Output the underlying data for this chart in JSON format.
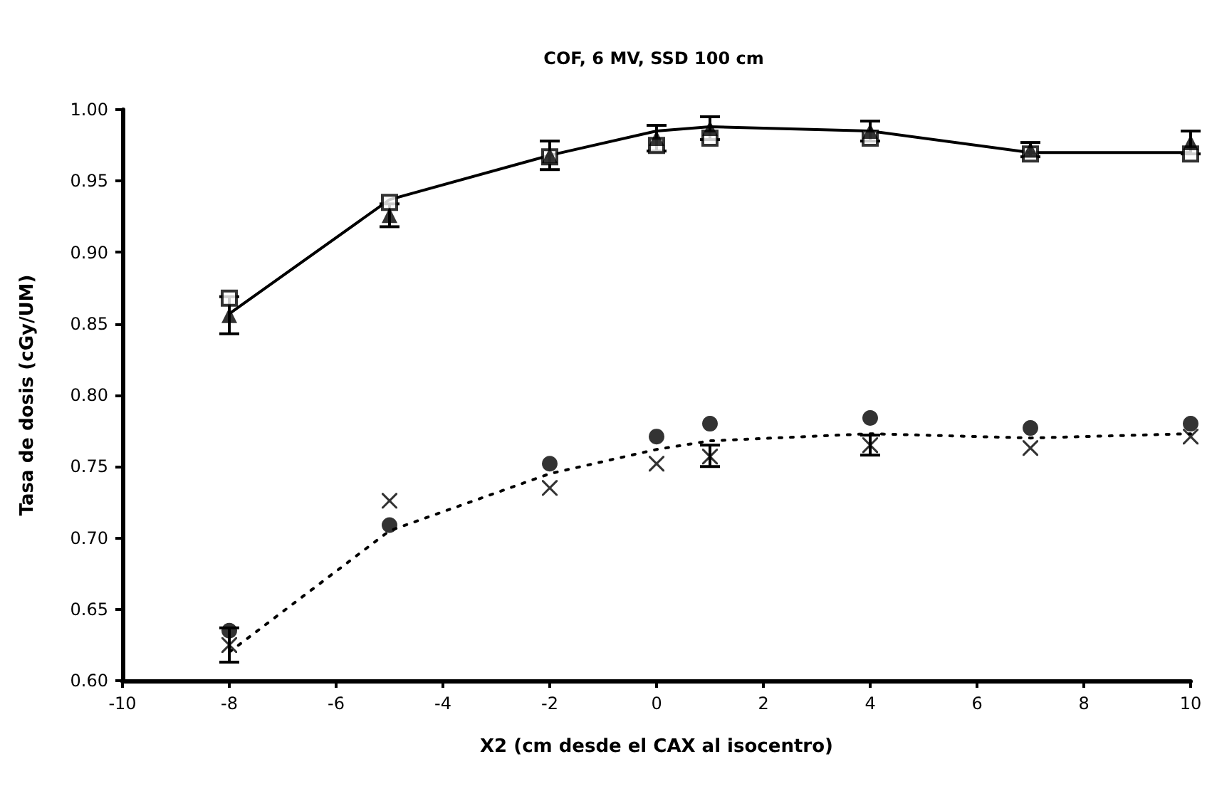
{
  "chart_data": {
    "type": "scatter",
    "title": "COF, 6 MV, SSD 100 cm",
    "xlabel": "X2 (cm desde el CAX al isocentro)",
    "ylabel": "Tasa de dosis (cGy/UM)",
    "x": [
      -8,
      -5,
      -2,
      0,
      1,
      4,
      7,
      10
    ],
    "series": [
      {
        "type": "line",
        "color": "#000000",
        "marker": "none",
        "line_style": "solid",
        "values": [
          0.857,
          0.937,
          0.968,
          0.985,
          0.988,
          0.985,
          0.97,
          0.97
        ]
      },
      {
        "color": "#000000",
        "marker": "triangle",
        "values": [
          0.856,
          0.926,
          0.968,
          0.98,
          0.987,
          0.985,
          0.972,
          0.977
        ],
        "errors": [
          0.013,
          0.008,
          0.01,
          0.009,
          0.008,
          0.007,
          0.005,
          0.008
        ]
      },
      {
        "color": "#000000",
        "marker": "square",
        "values": [
          0.868,
          0.935,
          0.967,
          0.975,
          0.98,
          0.98,
          0.969,
          0.969
        ]
      },
      {
        "type": "line",
        "color": "#000000",
        "marker": "none",
        "line_style": "dotted",
        "values": [
          0.62,
          0.705,
          0.745,
          0.762,
          0.768,
          0.773,
          0.77,
          0.773
        ]
      },
      {
        "color": "#000000",
        "marker": "circle",
        "values": [
          0.635,
          0.709,
          0.752,
          0.771,
          0.78,
          0.784,
          0.777,
          0.78
        ]
      },
      {
        "color": "#000000",
        "marker": "cross",
        "values": [
          0.625,
          0.726,
          0.735,
          0.752,
          0.757,
          0.765,
          0.763,
          0.771
        ],
        "errors": [
          [
            0.613,
            0.637
          ],
          null,
          null,
          null,
          [
            0.75,
            0.765
          ],
          [
            0.758,
            0.772
          ],
          null,
          null
        ]
      }
    ],
    "xlim": [
      -10,
      10
    ],
    "xticks": [
      -10,
      -8,
      -6,
      -4,
      -2,
      0,
      2,
      4,
      6,
      8,
      10
    ],
    "ylim": [
      0.6,
      1.0
    ],
    "yticks": [
      {
        "value": 0.6,
        "label": "0.60"
      },
      {
        "value": 0.65,
        "label": "0.65"
      },
      {
        "value": 0.7,
        "label": "0.70"
      },
      {
        "value": 0.75,
        "label": "0.75"
      },
      {
        "value": 0.8,
        "label": "0.80"
      },
      {
        "value": 0.85,
        "label": "0.85"
      },
      {
        "value": 0.9,
        "label": "0.90"
      },
      {
        "value": 0.95,
        "label": "0.95"
      },
      {
        "value": 1.0,
        "label": "1.00"
      }
    ],
    "grid": false
  }
}
